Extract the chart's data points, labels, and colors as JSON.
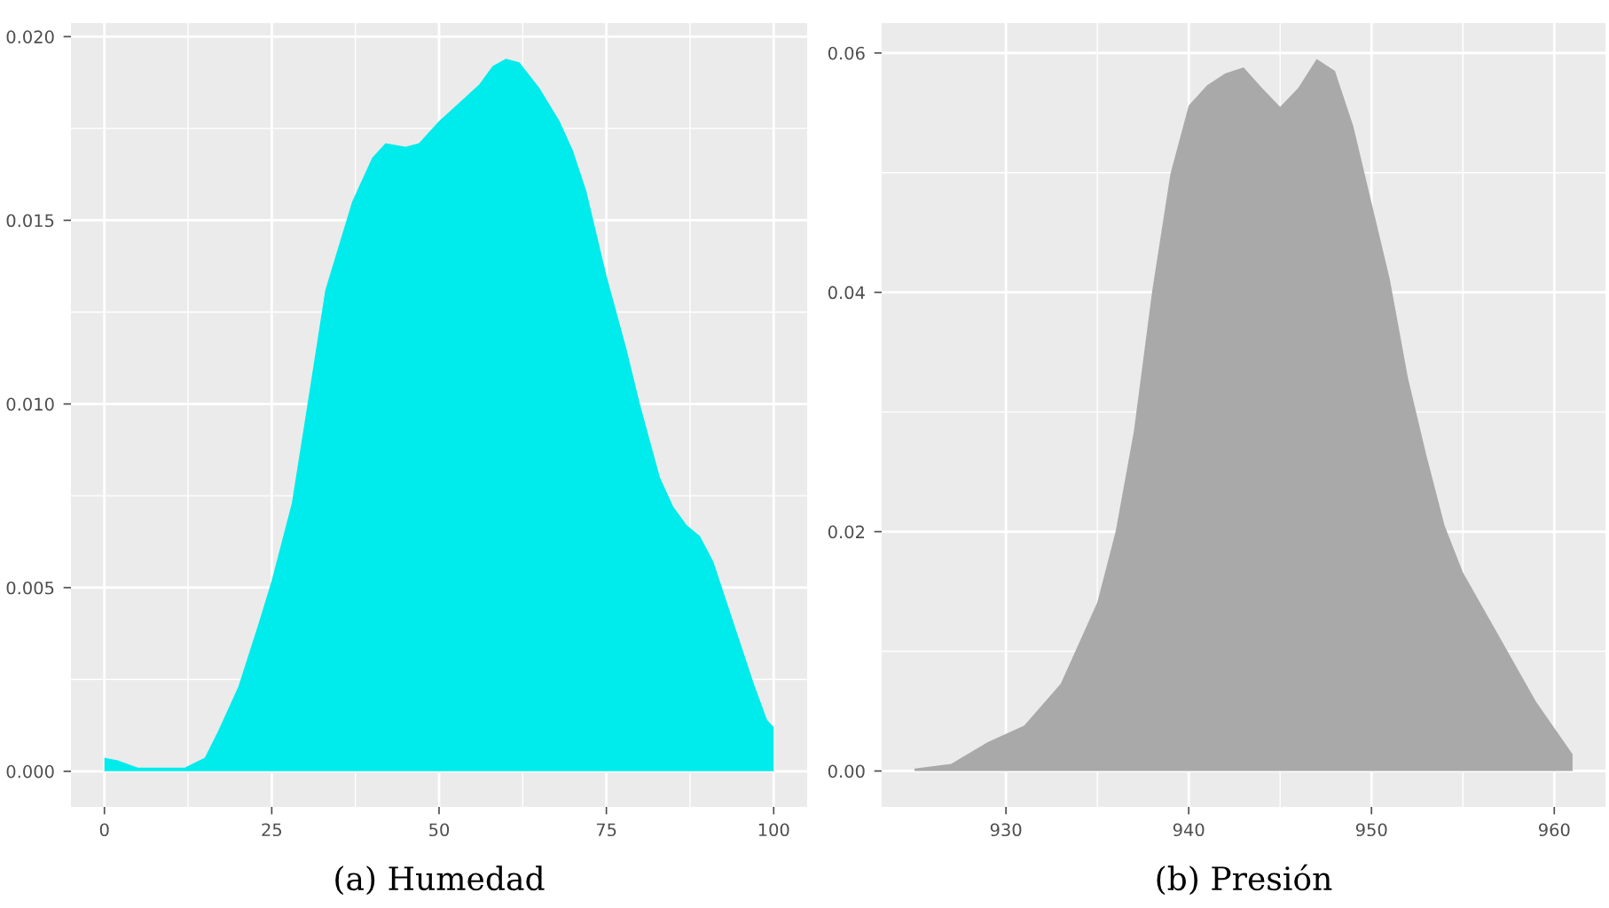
{
  "chart_data": [
    {
      "type": "area",
      "x": [
        0,
        2,
        5,
        8,
        12,
        15,
        17,
        20,
        23,
        25,
        28,
        30,
        33,
        35,
        37,
        40,
        42,
        45,
        47,
        50,
        53,
        56,
        58,
        60,
        62,
        65,
        68,
        70,
        72,
        75,
        78,
        80,
        83,
        85,
        87,
        89,
        91,
        93,
        95,
        97,
        99,
        100
      ],
      "series": [
        {
          "color": "#00ebeb",
          "values": [
            0.00037,
            0.0003,
            0.0001,
            0.0001,
            0.0001,
            0.00037,
            0.0011,
            0.0023,
            0.004,
            0.0052,
            0.0073,
            0.0096,
            0.0131,
            0.0143,
            0.0155,
            0.0167,
            0.0171,
            0.017,
            0.0171,
            0.0177,
            0.0182,
            0.0187,
            0.0192,
            0.0194,
            0.0193,
            0.0186,
            0.0177,
            0.0169,
            0.0158,
            0.0135,
            0.0115,
            0.01,
            0.008,
            0.0072,
            0.0067,
            0.0064,
            0.0057,
            0.0046,
            0.0035,
            0.0024,
            0.0014,
            0.0012
          ]
        }
      ],
      "xlim": [
        -5,
        105
      ],
      "ylim": [
        -0.00097,
        0.02037
      ],
      "xticks": [
        0,
        25,
        50,
        75,
        100
      ],
      "yticks": [
        {
          "value": 0,
          "label": "0.000"
        },
        {
          "value": 0.005,
          "label": "0.005"
        },
        {
          "value": 0.01,
          "label": "0.010"
        },
        {
          "value": 0.015,
          "label": "0.015"
        },
        {
          "value": 0.02,
          "label": "0.020"
        }
      ],
      "grid": true,
      "annotations": [
        "(a) Humedad"
      ]
    },
    {
      "type": "area",
      "x": [
        925,
        927,
        929,
        931,
        933,
        935,
        936,
        937,
        938,
        939,
        940,
        941,
        942,
        943,
        944,
        945,
        946,
        947,
        948,
        949,
        950,
        951,
        952,
        953,
        954,
        955,
        957,
        959,
        961
      ],
      "series": [
        {
          "color": "#a9a9a9",
          "values": [
            0.0002,
            0.0006,
            0.0024,
            0.0038,
            0.0073,
            0.0141,
            0.02,
            0.0284,
            0.0401,
            0.0499,
            0.0556,
            0.0573,
            0.0583,
            0.0588,
            0.0571,
            0.0555,
            0.0571,
            0.0595,
            0.0585,
            0.0539,
            0.0475,
            0.0411,
            0.0328,
            0.0264,
            0.0205,
            0.0166,
            0.0112,
            0.0058,
            0.0014
          ]
        }
      ],
      "xlim": [
        923.2,
        962.8
      ],
      "ylim": [
        -0.003,
        0.0625
      ],
      "xticks": [
        930,
        940,
        950,
        960
      ],
      "yticks": [
        {
          "value": 0,
          "label": "0.00"
        },
        {
          "value": 0.02,
          "label": "0.02"
        },
        {
          "value": 0.04,
          "label": "0.04"
        },
        {
          "value": 0.06,
          "label": "0.06"
        }
      ],
      "grid": true,
      "annotations": [
        "(b) Presión"
      ]
    }
  ]
}
